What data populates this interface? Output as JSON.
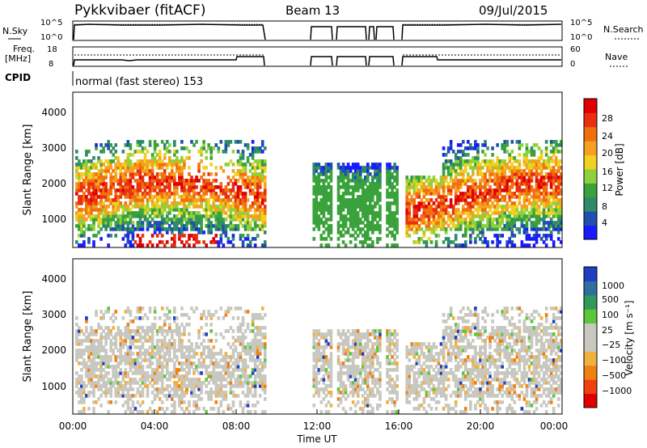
{
  "header": {
    "title": "Pykkvibaer (fitACF)",
    "beam": "Beam 13",
    "date": "09/Jul/2015"
  },
  "strips": {
    "nsky_label": "N.Sky",
    "nsky_ticks": [
      "10^5",
      "10^0"
    ],
    "nsearch_label": "N.Search",
    "nsearch_ticks": [
      "10^5",
      "10^0"
    ],
    "freq_label_1": "Freq.",
    "freq_label_2": "[MHz]",
    "freq_ticks": [
      "18",
      "8"
    ],
    "nave_label": "Nave",
    "nave_ticks": [
      "60",
      "0"
    ],
    "cpid_label": "CPID",
    "cpid_text": "normal (fast stereo) 153"
  },
  "chart_data": [
    {
      "type": "heatmap",
      "name": "power-panel",
      "ylabel": "Slant Range [km]",
      "yticks": [
        "1000",
        "2000",
        "3000",
        "4000"
      ],
      "ylim": [
        180,
        4500
      ],
      "xlim": [
        0,
        24
      ],
      "colorbar_label": "Power [dB]",
      "colorbar_ticks": [
        "4",
        "8",
        "12",
        "16",
        "20",
        "24",
        "28"
      ],
      "colorbar_colors": [
        "#1a1aff",
        "#1f4fb0",
        "#2f8a6a",
        "#3aa23a",
        "#8fd13a",
        "#f0d020",
        "#f5a020",
        "#f07010",
        "#e83010",
        "#e00000"
      ]
    },
    {
      "type": "heatmap",
      "name": "velocity-panel",
      "ylabel": "Slant Range [km]",
      "yticks": [
        "1000",
        "2000",
        "3000",
        "4000"
      ],
      "ylim": [
        180,
        4500
      ],
      "xlim": [
        0,
        24
      ],
      "xlabel": "Time UT",
      "xticks": [
        "00:00",
        "04:00",
        "08:00",
        "12:00",
        "16:00",
        "20:00",
        "00:00"
      ],
      "colorbar_label": "Velocity [m s⁻¹]",
      "colorbar_ticks": [
        "1000",
        "500",
        "100",
        "25",
        "−25",
        "−100",
        "−500",
        "−1000"
      ],
      "colorbar_colors": [
        "#1f3fc0",
        "#2f6fa0",
        "#2f9a5a",
        "#5ac83a",
        "#c8c8c0",
        "#c8c8c0",
        "#f0b040",
        "#f08010",
        "#f04010",
        "#e00000"
      ]
    }
  ]
}
